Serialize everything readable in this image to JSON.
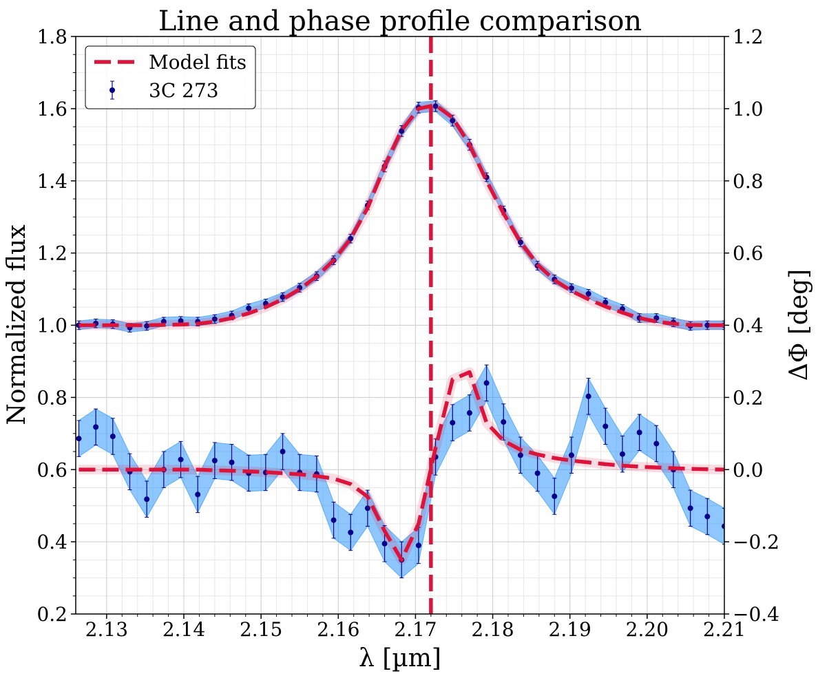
{
  "chart_data": {
    "type": "line",
    "title": "Line and phase profile comparison",
    "xlabel": "λ [µm]",
    "ylabel": "Normalized flux",
    "y2label": "ΔΦ [deg]",
    "x": [
      2.1264,
      2.1286,
      2.1308,
      2.133,
      2.1352,
      2.1374,
      2.1396,
      2.1418,
      2.144,
      2.1462,
      2.1484,
      2.1506,
      2.1528,
      2.155,
      2.1572,
      2.1594,
      2.1616,
      2.1638,
      2.166,
      2.1682,
      2.1704,
      2.1726,
      2.1748,
      2.177,
      2.1792,
      2.1814,
      2.1836,
      2.1858,
      2.188,
      2.1902,
      2.1924,
      2.1946,
      2.1968,
      2.199,
      2.2012,
      2.2034,
      2.2056,
      2.2078,
      2.21
    ],
    "series": [
      {
        "name": "Model fits",
        "color": "#dc143c",
        "style": "dashed",
        "values": [
          1.0,
          1.0,
          1.0,
          1.0,
          1.0,
          1.001,
          1.002,
          1.004,
          1.01,
          1.02,
          1.033,
          1.05,
          1.072,
          1.1,
          1.135,
          1.18,
          1.24,
          1.325,
          1.44,
          1.54,
          1.6,
          1.61,
          1.575,
          1.5,
          1.4,
          1.31,
          1.23,
          1.168,
          1.125,
          1.095,
          1.072,
          1.052,
          1.035,
          1.02,
          1.01,
          1.004,
          1.001,
          1.0,
          1.0
        ]
      },
      {
        "name": "3C 273",
        "color": "#00008b",
        "band_color": "#1e90ff",
        "style": "errorbar",
        "values": [
          1.0,
          1.005,
          1.003,
          0.993,
          0.998,
          1.01,
          1.012,
          1.01,
          1.017,
          1.027,
          1.047,
          1.06,
          1.078,
          1.104,
          1.136,
          1.18,
          1.24,
          1.332,
          1.44,
          1.538,
          1.603,
          1.607,
          1.567,
          1.5,
          1.41,
          1.318,
          1.23,
          1.165,
          1.127,
          1.103,
          1.087,
          1.063,
          1.045,
          1.02,
          1.02,
          1.008,
          0.998,
          1.0,
          1.0
        ],
        "errors": [
          0.012,
          0.012,
          0.012,
          0.012,
          0.012,
          0.012,
          0.012,
          0.012,
          0.012,
          0.012,
          0.012,
          0.012,
          0.012,
          0.012,
          0.012,
          0.012,
          0.012,
          0.012,
          0.015,
          0.015,
          0.015,
          0.015,
          0.015,
          0.015,
          0.012,
          0.012,
          0.012,
          0.012,
          0.012,
          0.012,
          0.012,
          0.012,
          0.012,
          0.012,
          0.012,
          0.012,
          0.012,
          0.012,
          0.012
        ]
      },
      {
        "name": "Model fits",
        "color": "#dc143c",
        "style": "dashed",
        "axis": "y2",
        "values": [
          0,
          0,
          0,
          0,
          0,
          0,
          0,
          0,
          -0.002,
          -0.003,
          -0.005,
          -0.007,
          -0.01,
          -0.013,
          -0.018,
          -0.025,
          -0.04,
          -0.075,
          -0.17,
          -0.25,
          -0.15,
          0.06,
          0.25,
          0.27,
          0.13,
          0.08,
          0.055,
          0.042,
          0.032,
          0.025,
          0.02,
          0.015,
          0.011,
          0.008,
          0.006,
          0.004,
          0.002,
          0.001,
          0
        ]
      },
      {
        "name": "3C 273",
        "color": "#00008b",
        "band_color": "#1e90ff",
        "style": "errorbar",
        "axis": "y2",
        "values": [
          0.086,
          0.118,
          0.092,
          -0.006,
          -0.082,
          0,
          0.028,
          -0.069,
          0.025,
          0.02,
          -0.01,
          -0.008,
          0.05,
          -0.008,
          -0.012,
          -0.14,
          -0.174,
          -0.107,
          -0.205,
          -0.25,
          -0.21,
          0.035,
          0.13,
          0.157,
          0.24,
          0.132,
          0.04,
          -0.01,
          -0.074,
          0.04,
          0.203,
          0.12,
          0.043,
          0.103,
          0.072,
          0,
          -0.107,
          -0.13,
          -0.157
        ],
        "errors": [
          0.05,
          0.05,
          0.05,
          0.05,
          0.05,
          0.05,
          0.05,
          0.05,
          0.05,
          0.05,
          0.05,
          0.05,
          0.05,
          0.05,
          0.05,
          0.05,
          0.05,
          0.05,
          0.05,
          0.05,
          0.05,
          0.05,
          0.05,
          0.05,
          0.05,
          0.05,
          0.05,
          0.05,
          0.05,
          0.05,
          0.05,
          0.05,
          0.05,
          0.05,
          0.05,
          0.05,
          0.05,
          0.05,
          0.05
        ]
      }
    ],
    "vline": {
      "x": 2.172,
      "color": "#dc143c"
    },
    "xlim": [
      2.126,
      2.21
    ],
    "xticks": [
      2.13,
      2.14,
      2.15,
      2.16,
      2.17,
      2.18,
      2.19,
      {
        "value": 2.2,
        "label": "2.20"
      },
      2.21
    ],
    "ylim": [
      0.2,
      1.8
    ],
    "yticks": [
      0.2,
      0.4,
      0.6,
      0.8,
      {
        "value": 1,
        "label": "1.0"
      },
      1.2,
      1.4,
      1.6,
      1.8
    ],
    "y2lim": [
      -0.4,
      1.2
    ],
    "y2ticks": [
      {
        "value": -0.4,
        "label": "−0.4"
      },
      {
        "value": -0.2,
        "label": "−0.2"
      },
      {
        "value": 0,
        "label": "0.0"
      },
      0.2,
      0.4,
      0.6,
      0.8,
      {
        "value": 1,
        "label": "1.0"
      },
      1.2
    ],
    "grid": true,
    "minor_grid": {
      "x": 5,
      "y": 4
    },
    "legend": "upper left"
  }
}
